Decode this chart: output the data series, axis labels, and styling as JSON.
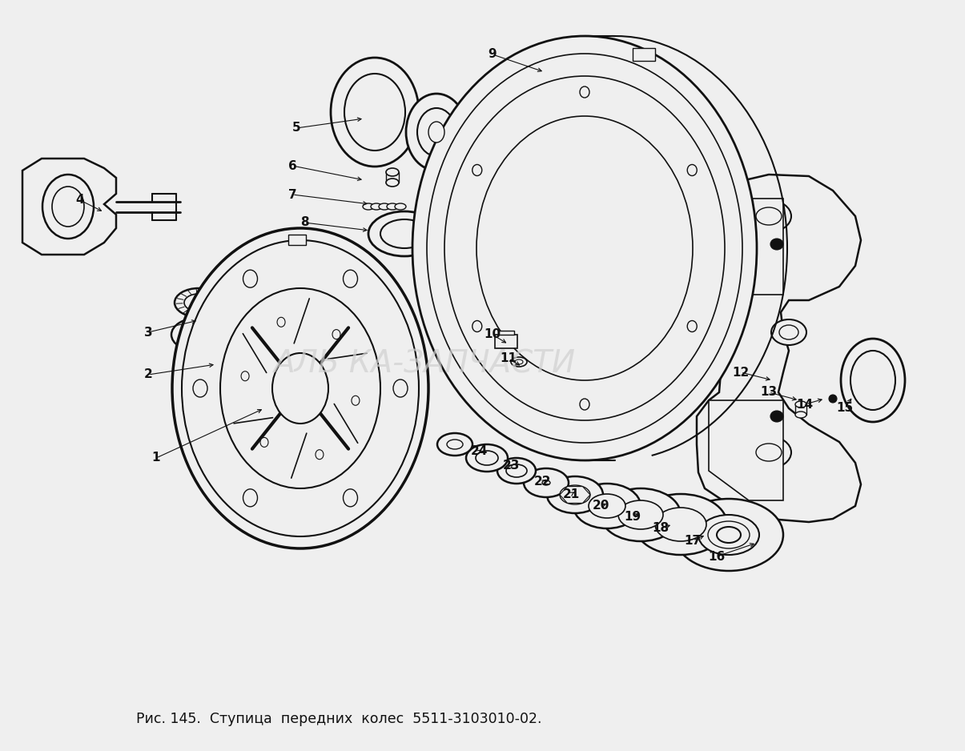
{
  "caption": "Рис. 145.  Ступица  передних  колес  5511-3103010-02.",
  "background_color": "#efefef",
  "line_color": "#111111",
  "watermark_color": "#d0d0d0",
  "figsize": [
    12.05,
    9.38
  ],
  "dpi": 100,
  "leader_lines": [
    [
      "1",
      195,
      572,
      330,
      510
    ],
    [
      "2",
      185,
      468,
      270,
      455
    ],
    [
      "3",
      185,
      415,
      248,
      400
    ],
    [
      "4",
      100,
      250,
      130,
      265
    ],
    [
      "5",
      370,
      160,
      455,
      148
    ],
    [
      "6",
      365,
      207,
      455,
      225
    ],
    [
      "7",
      365,
      243,
      462,
      255
    ],
    [
      "8",
      380,
      278,
      462,
      288
    ],
    [
      "9",
      615,
      68,
      680,
      90
    ],
    [
      "10",
      615,
      418,
      635,
      430
    ],
    [
      "11",
      635,
      448,
      652,
      458
    ],
    [
      "12",
      925,
      465,
      965,
      475
    ],
    [
      "13",
      960,
      490,
      998,
      500
    ],
    [
      "14",
      1005,
      505,
      1030,
      498
    ],
    [
      "15",
      1055,
      510,
      1065,
      495
    ],
    [
      "16",
      895,
      695,
      945,
      678
    ],
    [
      "17",
      865,
      675,
      882,
      668
    ],
    [
      "18",
      825,
      660,
      840,
      655
    ],
    [
      "19",
      790,
      645,
      800,
      640
    ],
    [
      "20",
      750,
      632,
      760,
      628
    ],
    [
      "21",
      713,
      617,
      720,
      613
    ],
    [
      "22",
      678,
      602,
      685,
      597
    ],
    [
      "23",
      638,
      582,
      643,
      578
    ],
    [
      "24",
      598,
      564,
      604,
      560
    ]
  ]
}
